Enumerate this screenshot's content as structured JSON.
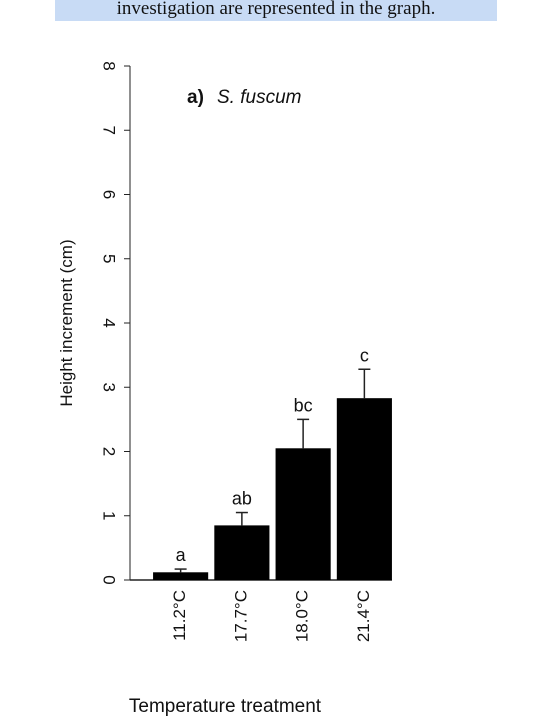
{
  "header_text": "investigation are represented in the graph.",
  "chart_data": {
    "type": "bar",
    "panel_label": "a)",
    "title": "S. fuscum",
    "y_label": "Height increment (cm)",
    "x_label": "Temperature treatment",
    "categories": [
      "11.2°C",
      "17.7°C",
      "18.0°C",
      "21.4°C"
    ],
    "values": [
      0.12,
      0.85,
      2.05,
      2.83
    ],
    "errors": [
      0.05,
      0.2,
      0.45,
      0.45
    ],
    "letters": [
      "a",
      "ab",
      "bc",
      "c"
    ],
    "color": "#000000",
    "ylim": [
      0,
      8
    ],
    "yticks": [
      0,
      1,
      2,
      3,
      4,
      5,
      6,
      7,
      8
    ]
  }
}
